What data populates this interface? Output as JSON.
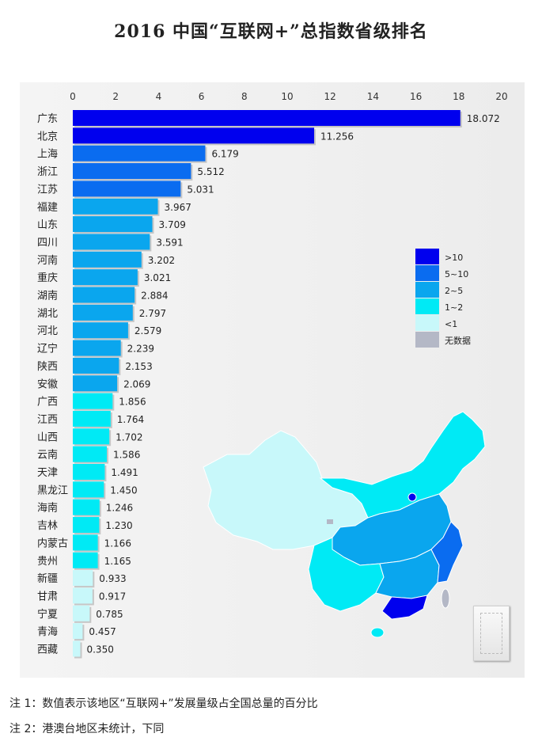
{
  "title": "2016 中国“互联网+”总指数省级排名",
  "chart_data": {
    "type": "bar",
    "orientation": "horizontal",
    "categories": [
      "广东",
      "北京",
      "上海",
      "浙江",
      "江苏",
      "福建",
      "山东",
      "四川",
      "河南",
      "重庆",
      "湖南",
      "湖北",
      "河北",
      "辽宁",
      "陕西",
      "安徽",
      "广西",
      "江西",
      "山西",
      "云南",
      "天津",
      "黑龙江",
      "海南",
      "吉林",
      "内蒙古",
      "贵州",
      "新疆",
      "甘肃",
      "宁夏",
      "青海",
      "西藏"
    ],
    "values": [
      18.072,
      11.256,
      6.179,
      5.512,
      5.031,
      3.967,
      3.709,
      3.591,
      3.202,
      3.021,
      2.884,
      2.797,
      2.579,
      2.239,
      2.153,
      2.069,
      1.856,
      1.764,
      1.702,
      1.586,
      1.491,
      1.45,
      1.246,
      1.23,
      1.166,
      1.165,
      0.933,
      0.917,
      0.785,
      0.457,
      0.35
    ],
    "value_labels": [
      "18.072",
      "11.256",
      "6.179",
      "5.512",
      "5.031",
      "3.967",
      "3.709",
      "3.591",
      "3.202",
      "3.021",
      "2.884",
      "2.797",
      "2.579",
      "2.239",
      "2.153",
      "2.069",
      "1.856",
      "1.764",
      "1.702",
      "1.586",
      "1.491",
      "1.450",
      "1.246",
      "1.230",
      "1.166",
      "1.165",
      "0.933",
      "0.917",
      "0.785",
      "0.457",
      "0.350"
    ],
    "x_ticks": [
      "0",
      "2",
      "4",
      "6",
      "8",
      "10",
      "12",
      "14",
      "16",
      "18",
      "20"
    ],
    "xlim": [
      0,
      20
    ],
    "grid": false,
    "legend": {
      "placement": "right",
      "items": [
        {
          "label": ">10",
          "color": "#0000ee"
        },
        {
          "label": "5~10",
          "color": "#0a6cf0"
        },
        {
          "label": "2~5",
          "color": "#0aa6ee"
        },
        {
          "label": "1~2",
          "color": "#00eaf5"
        },
        {
          "label": "<1",
          "color": "#c8f8fa"
        },
        {
          "label": "无数据",
          "color": "#b4b8c6"
        }
      ]
    }
  },
  "notes": [
    "注 1：数值表示该地区“互联网+”发展量级占全国总量的百分比",
    "注 2：港澳台地区未统计，下同"
  ]
}
